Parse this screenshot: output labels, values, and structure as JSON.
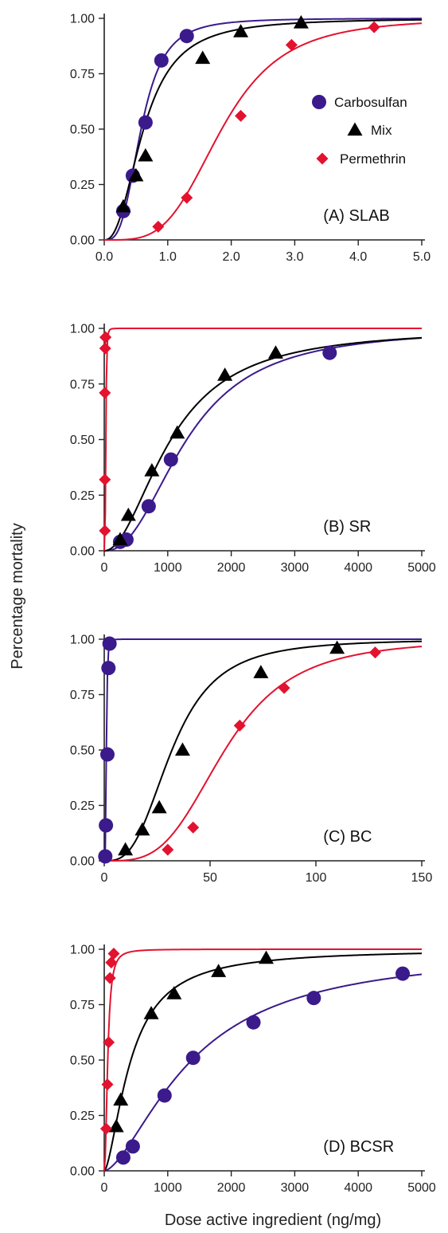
{
  "figure": {
    "ylabel": "Percentage mortality",
    "xlabel": "Dose active ingredient (ng/mg)"
  },
  "colors": {
    "Carbosulfan": "#3b1a8c",
    "Mix": "#000000",
    "Permethrin": "#e3122f"
  },
  "legend": {
    "panel": 0,
    "placement": "upper-right",
    "entries": [
      {
        "name": "Carbosulfan",
        "marker": "circle"
      },
      {
        "name": "Mix",
        "marker": "triangle"
      },
      {
        "name": "Permethrin",
        "marker": "diamond"
      }
    ]
  },
  "chart_data": [
    {
      "type": "scatter",
      "panel_label": "(A) SLAB",
      "xlim": [
        0,
        5
      ],
      "ylim": [
        0,
        1
      ],
      "xticks": [
        0,
        1,
        2,
        3,
        4,
        5
      ],
      "xtick_labels": [
        "0.0",
        "1.0",
        "2.0",
        "3.0",
        "4.0",
        "5.0"
      ],
      "yticks": [
        0,
        0.25,
        0.5,
        0.75,
        1
      ],
      "ytick_labels": [
        "0.00",
        "0.25",
        "0.50",
        "0.75",
        "1.00"
      ],
      "series": [
        {
          "name": "Carbosulfan",
          "marker": "circle",
          "x": [
            0.3,
            0.45,
            0.65,
            0.9,
            1.3
          ],
          "y": [
            0.13,
            0.29,
            0.53,
            0.81,
            0.92
          ],
          "curve": {
            "ec50": 0.58,
            "slope": 3.2,
            "xmax": 5
          }
        },
        {
          "name": "Mix",
          "marker": "triangle",
          "x": [
            0.3,
            0.5,
            0.65,
            1.55,
            2.15,
            3.1
          ],
          "y": [
            0.15,
            0.29,
            0.38,
            0.82,
            0.94,
            0.98
          ],
          "curve": {
            "ec50": 0.62,
            "slope": 2.4,
            "xmax": 5
          }
        },
        {
          "name": "Permethrin",
          "marker": "diamond",
          "x": [
            0.85,
            1.3,
            2.15,
            2.95,
            4.25
          ],
          "y": [
            0.06,
            0.19,
            0.56,
            0.88,
            0.96
          ],
          "curve": {
            "ec50": 1.85,
            "slope": 3.8,
            "xmax": 5
          }
        }
      ]
    },
    {
      "type": "scatter",
      "panel_label": "(B) SR",
      "xlim": [
        0,
        5000
      ],
      "ylim": [
        0,
        1
      ],
      "xticks": [
        0,
        1000,
        2000,
        3000,
        4000,
        5000
      ],
      "xtick_labels": [
        "0",
        "1000",
        "2000",
        "3000",
        "4000",
        "5000"
      ],
      "yticks": [
        0,
        0.25,
        0.5,
        0.75,
        1
      ],
      "ytick_labels": [
        "0.00",
        "0.25",
        "0.50",
        "0.75",
        "1.00"
      ],
      "series": [
        {
          "name": "Carbosulfan",
          "marker": "circle",
          "x": [
            250,
            350,
            700,
            1050,
            3550
          ],
          "y": [
            0.04,
            0.05,
            0.2,
            0.41,
            0.89
          ],
          "curve": {
            "ec50": 1300,
            "slope": 2.3,
            "xmax": 5000
          }
        },
        {
          "name": "Mix",
          "marker": "triangle",
          "x": [
            250,
            380,
            750,
            1150,
            1900,
            2700
          ],
          "y": [
            0.05,
            0.16,
            0.36,
            0.53,
            0.79,
            0.89
          ],
          "curve": {
            "ec50": 1050,
            "slope": 2.0,
            "xmax": 5000
          }
        },
        {
          "name": "Permethrin",
          "marker": "diamond",
          "x": [
            10,
            10,
            10,
            15,
            20,
            20
          ],
          "y": [
            0.09,
            0.32,
            0.71,
            0.91,
            0.96,
            0.96
          ],
          "curve": {
            "ec50": 25,
            "slope": 4.0,
            "xmax": 5000
          }
        }
      ]
    },
    {
      "type": "scatter",
      "panel_label": "(C) BC",
      "xlim": [
        0,
        150
      ],
      "ylim": [
        0,
        1
      ],
      "xticks": [
        0,
        50,
        100,
        150
      ],
      "xtick_labels": [
        "0",
        "50",
        "100",
        "150"
      ],
      "yticks": [
        0,
        0.25,
        0.5,
        0.75,
        1
      ],
      "ytick_labels": [
        "0.00",
        "0.25",
        "0.50",
        "0.75",
        "1.00"
      ],
      "series": [
        {
          "name": "Carbosulfan",
          "marker": "circle",
          "x": [
            0.5,
            0.8,
            1.5,
            2,
            2.5
          ],
          "y": [
            0.02,
            0.16,
            0.48,
            0.87,
            0.98
          ],
          "curve": {
            "ec50": 1.0,
            "slope": 4.0,
            "xmax": 150
          }
        },
        {
          "name": "Mix",
          "marker": "triangle",
          "x": [
            10,
            18,
            26,
            37,
            74,
            110
          ],
          "y": [
            0.05,
            0.14,
            0.24,
            0.5,
            0.85,
            0.96
          ],
          "curve": {
            "ec50": 32,
            "slope": 3.0,
            "xmax": 150
          }
        },
        {
          "name": "Permethrin",
          "marker": "diamond",
          "x": [
            30,
            42,
            64,
            85,
            128
          ],
          "y": [
            0.05,
            0.15,
            0.61,
            0.78,
            0.94
          ],
          "curve": {
            "ec50": 57,
            "slope": 3.5,
            "xmax": 150
          }
        }
      ]
    },
    {
      "type": "scatter",
      "panel_label": "(D) BCSR",
      "xlim": [
        0,
        5000
      ],
      "ylim": [
        0,
        1
      ],
      "xticks": [
        0,
        1000,
        2000,
        3000,
        4000,
        5000
      ],
      "xtick_labels": [
        "0",
        "1000",
        "2000",
        "3000",
        "4000",
        "5000"
      ],
      "yticks": [
        0,
        0.25,
        0.5,
        0.75,
        1
      ],
      "ytick_labels": [
        "0.00",
        "0.25",
        "0.50",
        "0.75",
        "1.00"
      ],
      "series": [
        {
          "name": "Carbosulfan",
          "marker": "circle",
          "x": [
            300,
            450,
            950,
            1400,
            2350,
            3300,
            4700
          ],
          "y": [
            0.06,
            0.11,
            0.34,
            0.51,
            0.67,
            0.78,
            0.89
          ],
          "curve": {
            "ec50": 1380,
            "slope": 1.6,
            "xmax": 5000
          }
        },
        {
          "name": "Mix",
          "marker": "triangle",
          "x": [
            190,
            260,
            740,
            1100,
            1800,
            2550
          ],
          "y": [
            0.2,
            0.32,
            0.71,
            0.8,
            0.9,
            0.96
          ],
          "curve": {
            "ec50": 420,
            "slope": 1.6,
            "xmax": 5000
          }
        },
        {
          "name": "Permethrin",
          "marker": "diamond",
          "x": [
            30,
            50,
            70,
            90,
            110,
            150
          ],
          "y": [
            0.19,
            0.39,
            0.58,
            0.87,
            0.94,
            0.98
          ],
          "curve": {
            "ec50": 55,
            "slope": 2.2,
            "xmax": 5000
          }
        }
      ]
    }
  ]
}
